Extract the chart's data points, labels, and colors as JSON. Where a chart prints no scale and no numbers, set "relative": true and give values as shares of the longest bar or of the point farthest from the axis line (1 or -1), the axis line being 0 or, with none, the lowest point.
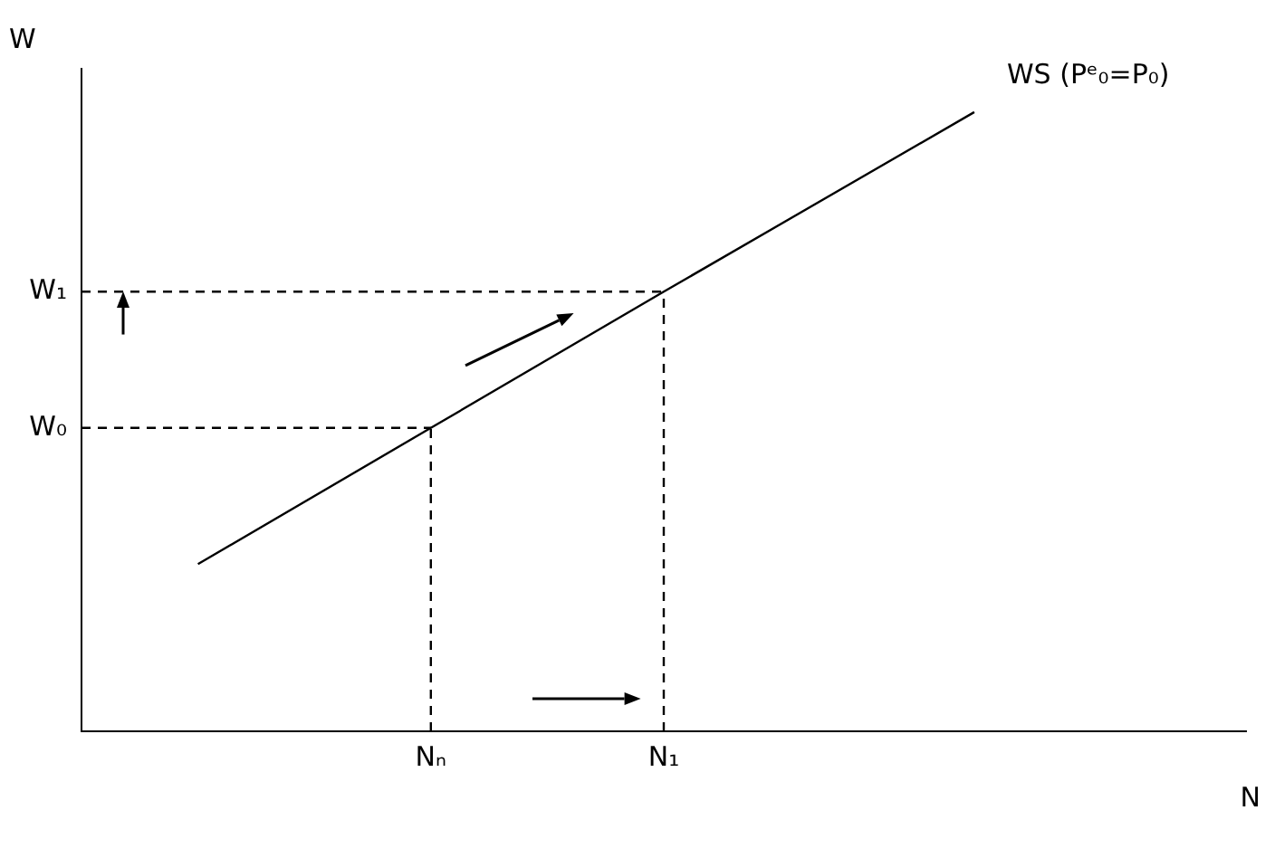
{
  "chart_data": {
    "type": "line",
    "relative": true,
    "xlabel": "N",
    "ylabel": "W",
    "marker": "none",
    "categories": [
      null,
      null,
      null,
      null,
      "Nₙ",
      null,
      null,
      "N₁",
      null,
      null,
      null,
      null,
      null,
      null,
      null
    ],
    "series": [
      {
        "name": "WS (Pᵉ₀=P₀)",
        "color": "#000000",
        "values": [
          null,
          0.27,
          null,
          null,
          0.49,
          null,
          null,
          0.71,
          null,
          null,
          null,
          1,
          null,
          null,
          null
        ],
        "line_style": "solid"
      }
    ],
    "ref_lines": [
      {
        "axis": "y",
        "value": 0.49,
        "label": "W₀",
        "color": "#000000",
        "line_style": "dashed"
      },
      {
        "axis": "y",
        "value": 0.71,
        "label": "W₁",
        "color": "#000000",
        "line_style": "dashed"
      },
      {
        "axis": "x",
        "value": "Nₙ",
        "color": "#000000",
        "line_style": "dashed"
      },
      {
        "axis": "x",
        "value": "N₁",
        "color": "#000000",
        "line_style": "dashed"
      }
    ]
  }
}
